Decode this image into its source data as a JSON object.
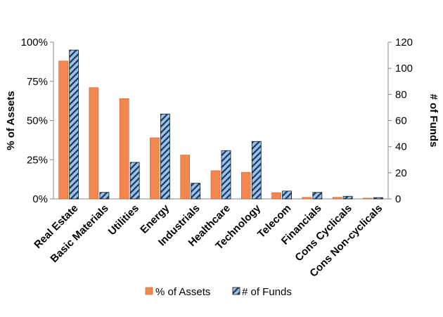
{
  "chart_data": {
    "type": "bar",
    "categories": [
      "Real Estate",
      "Basic Materials",
      "Utilities",
      "Energy",
      "Industrials",
      "Healthcare",
      "Technology",
      "Telecom",
      "Financials",
      "Cons Cyclicals",
      "Cons Non-cyclicals"
    ],
    "series": [
      {
        "name": "% of Assets",
        "axis": "left",
        "color": "#F4874F",
        "values": [
          88,
          71,
          64,
          39,
          28,
          18,
          17,
          4,
          1,
          1,
          0.5
        ]
      },
      {
        "name": "# of Funds",
        "axis": "right",
        "color": "#1F3F6E",
        "hatch_color": "#9DC3E6",
        "values": [
          114,
          5,
          28,
          65,
          12,
          37,
          44,
          6,
          5,
          2,
          1
        ]
      }
    ],
    "y_left": {
      "label": "% of Assets",
      "ylim": [
        0,
        100
      ],
      "ticks": [
        0,
        25,
        50,
        75,
        100
      ],
      "tick_labels": [
        "0%",
        "25%",
        "50%",
        "75%",
        "100%"
      ]
    },
    "y_right": {
      "label": "# of Funds",
      "ylim": [
        0,
        120
      ],
      "ticks": [
        0,
        20,
        40,
        60,
        80,
        100,
        120
      ],
      "tick_labels": [
        "0",
        "20",
        "40",
        "60",
        "80",
        "100",
        "120"
      ]
    },
    "legend": {
      "position": "bottom",
      "items": [
        "% of Assets",
        "# of Funds"
      ]
    },
    "grid": false
  }
}
